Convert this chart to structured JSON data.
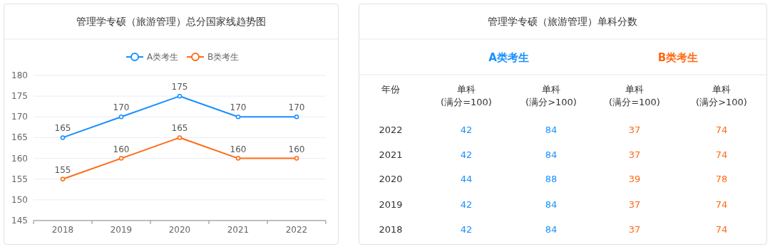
{
  "chart_data": [
    {
      "type": "line",
      "title": "管理学专硕（旅游管理）总分国家线趋势图",
      "categories": [
        "2018",
        "2019",
        "2020",
        "2021",
        "2022"
      ],
      "series": [
        {
          "name": "A类考生",
          "color": "#1890ff",
          "values": [
            165,
            170,
            175,
            170,
            170
          ]
        },
        {
          "name": "B类考生",
          "color": "#ff6a13",
          "values": [
            155,
            160,
            165,
            160,
            160
          ]
        }
      ],
      "ylim": [
        145,
        180
      ],
      "yticks": [
        145,
        150,
        155,
        160,
        165,
        170,
        175,
        180
      ],
      "grid": "y",
      "legend": "top",
      "marker": "circle",
      "data_labels": true
    },
    {
      "type": "heatmap",
      "title": "管理学专硕（旅游管理）单科分数",
      "categories": [
        "单科\n(满分=100)",
        "单科\n(满分>100)",
        "单科\n(满分=100)",
        "单科\n(满分>100)"
      ],
      "y_categories": [
        "2022",
        "2021",
        "2020",
        "2019",
        "2018"
      ],
      "cells": [
        [
          42,
          84,
          37,
          74
        ],
        [
          42,
          84,
          37,
          74
        ],
        [
          44,
          88,
          39,
          78
        ],
        [
          42,
          84,
          37,
          74
        ],
        [
          42,
          84,
          37,
          74
        ]
      ],
      "colors": [
        "#1890ff",
        "#1890ff",
        "#ff6a13",
        "#ff6a13"
      ],
      "data_labels": true,
      "annotations": [
        "年份",
        "A类考生",
        "B类考生"
      ]
    }
  ]
}
